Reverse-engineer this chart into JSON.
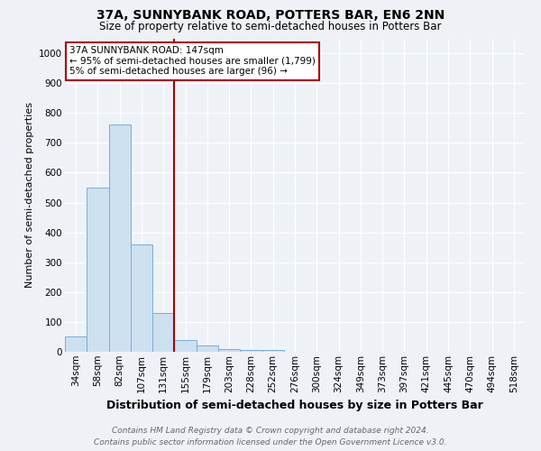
{
  "title": "37A, SUNNYBANK ROAD, POTTERS BAR, EN6 2NN",
  "subtitle": "Size of property relative to semi-detached houses in Potters Bar",
  "xlabel": "Distribution of semi-detached houses by size in Potters Bar",
  "ylabel": "Number of semi-detached properties",
  "categories": [
    "34sqm",
    "58sqm",
    "82sqm",
    "107sqm",
    "131sqm",
    "155sqm",
    "179sqm",
    "203sqm",
    "228sqm",
    "252sqm",
    "276sqm",
    "300sqm",
    "324sqm",
    "349sqm",
    "373sqm",
    "397sqm",
    "421sqm",
    "445sqm",
    "470sqm",
    "494sqm",
    "518sqm"
  ],
  "values": [
    50,
    550,
    760,
    360,
    130,
    40,
    20,
    10,
    5,
    5,
    0,
    0,
    0,
    0,
    0,
    0,
    0,
    0,
    0,
    0,
    0
  ],
  "bar_color": "#cce0f0",
  "bar_edge_color": "#7aaed4",
  "vline_color": "#aa0000",
  "annotation_line1": "37A SUNNYBANK ROAD: 147sqm",
  "annotation_line2": "← 95% of semi-detached houses are smaller (1,799)",
  "annotation_line3": "5% of semi-detached houses are larger (96) →",
  "annotation_box_color": "#ffffff",
  "annotation_box_edge": "#aa0000",
  "ylim": [
    0,
    1050
  ],
  "yticks": [
    0,
    100,
    200,
    300,
    400,
    500,
    600,
    700,
    800,
    900,
    1000
  ],
  "footer_line1": "Contains HM Land Registry data © Crown copyright and database right 2024.",
  "footer_line2": "Contains public sector information licensed under the Open Government Licence v3.0.",
  "background_color": "#eef2f7",
  "grid_color": "#ffffff",
  "title_fontsize": 10,
  "subtitle_fontsize": 8.5,
  "xlabel_fontsize": 9,
  "ylabel_fontsize": 8,
  "tick_fontsize": 7.5,
  "annot_fontsize": 7.5,
  "footer_fontsize": 6.5
}
